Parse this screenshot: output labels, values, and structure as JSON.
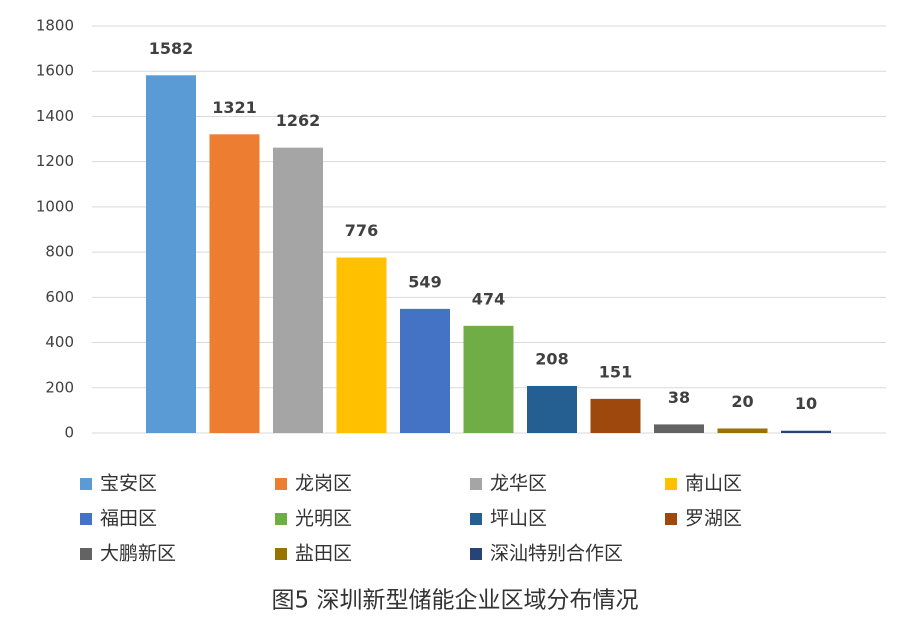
{
  "chart_data": {
    "type": "bar",
    "title": "图5 深圳新型储能企业区域分布情况",
    "categories": [
      "宝安区",
      "龙岗区",
      "龙华区",
      "南山区",
      "福田区",
      "光明区",
      "坪山区",
      "罗湖区",
      "大鹏新区",
      "盐田区",
      "深汕特别合作区"
    ],
    "values": [
      1582,
      1321,
      1262,
      776,
      549,
      474,
      208,
      151,
      38,
      20,
      10
    ],
    "colors": [
      "#5b9bd5",
      "#ed7d31",
      "#a5a5a5",
      "#ffc000",
      "#4472c4",
      "#70ad47",
      "#255e91",
      "#9e480e",
      "#636363",
      "#997300",
      "#264478"
    ],
    "ylim": [
      0,
      1800
    ],
    "yticks": [
      0,
      200,
      400,
      600,
      800,
      1000,
      1200,
      1400,
      1600,
      1800
    ],
    "grid": true,
    "data_labels": true,
    "legend": "bottom"
  }
}
